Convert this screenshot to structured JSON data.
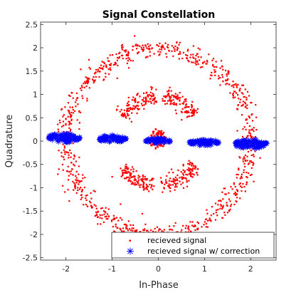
{
  "chart_data": {
    "type": "scatter",
    "title": "Signal Constellation",
    "xlabel": "In-Phase",
    "ylabel": "Quadrature",
    "xlim": [
      -2.55,
      2.55
    ],
    "ylim": [
      -2.55,
      2.55
    ],
    "xticks": [
      -2,
      -1,
      0,
      1,
      2
    ],
    "xtick_labels": [
      "-2",
      "-1",
      "0",
      "1",
      "2"
    ],
    "yticks": [
      2.5,
      2,
      1.5,
      1,
      0.5,
      0,
      -0.5,
      -1,
      -1.5,
      -2,
      -2.5
    ],
    "ytick_labels": [
      "2.5",
      "2",
      "1.5",
      "1",
      "0.5",
      "0",
      "-0.5",
      "-1",
      "-1.5",
      "-2",
      "-2.5"
    ],
    "grid": false,
    "legend_position": "bottom-right",
    "series": [
      {
        "name": "recieved signal",
        "marker": "dot",
        "color": "#ff0000",
        "description_of_clusters": "outer ring radius ~2, inner arcs radius ~1, center cluster",
        "rings": [
          {
            "radius": 2.0,
            "spread": 0.1,
            "count": 900
          }
        ],
        "arcs": [
          {
            "center_angle_deg": 60,
            "span_deg": 50,
            "radius": 0.95,
            "spread": 0.09,
            "count": 120
          },
          {
            "center_angle_deg": 120,
            "span_deg": 55,
            "radius": 0.95,
            "spread": 0.09,
            "count": 120
          },
          {
            "center_angle_deg": 240,
            "span_deg": 50,
            "radius": 0.95,
            "spread": 0.09,
            "count": 120
          },
          {
            "center_angle_deg": 300,
            "span_deg": 55,
            "radius": 0.95,
            "spread": 0.09,
            "count": 120
          }
        ],
        "center_cluster": {
          "x": 0.0,
          "y": 0.05,
          "spread": 0.1,
          "count": 120
        }
      },
      {
        "name": "recieved signal w/ correction",
        "marker": "asterisk",
        "color": "#0000ff",
        "clusters": [
          {
            "x": -2.05,
            "y": 0.07,
            "half_width": 0.35,
            "half_height": 0.1,
            "count": 90
          },
          {
            "x": -1.0,
            "y": 0.05,
            "half_width": 0.3,
            "half_height": 0.08,
            "count": 70
          },
          {
            "x": 0.0,
            "y": 0.01,
            "half_width": 0.28,
            "half_height": 0.06,
            "count": 60
          },
          {
            "x": 0.99,
            "y": -0.03,
            "half_width": 0.32,
            "half_height": 0.07,
            "count": 70
          },
          {
            "x": 2.0,
            "y": -0.06,
            "half_width": 0.35,
            "half_height": 0.1,
            "count": 90
          }
        ]
      }
    ],
    "legend": [
      "recieved signal",
      "recieved signal w/ correction"
    ]
  }
}
